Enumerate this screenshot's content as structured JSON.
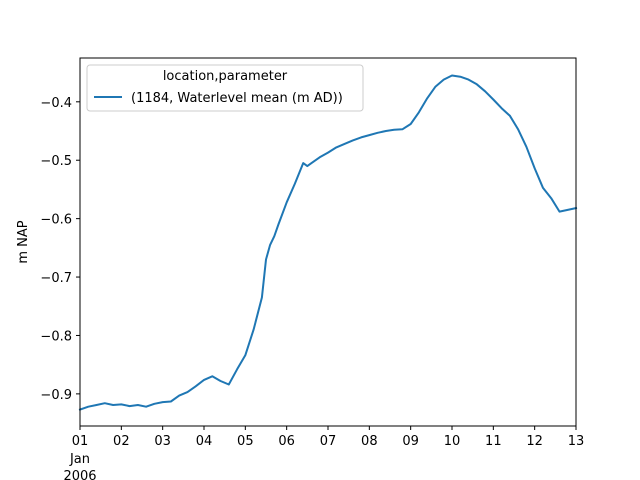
{
  "chart_data": {
    "type": "line",
    "ylabel": "m NAP",
    "xlim": [
      0,
      12
    ],
    "ylim": [
      -0.955,
      -0.325
    ],
    "grid": false,
    "legend_placement": "top-left",
    "legend_title": "location,parameter",
    "x_ticks": [
      {
        "value": 0,
        "label": "01"
      },
      {
        "value": 1,
        "label": "02"
      },
      {
        "value": 2,
        "label": "03"
      },
      {
        "value": 3,
        "label": "04"
      },
      {
        "value": 4,
        "label": "05"
      },
      {
        "value": 5,
        "label": "06"
      },
      {
        "value": 6,
        "label": "07"
      },
      {
        "value": 7,
        "label": "08"
      },
      {
        "value": 8,
        "label": "09"
      },
      {
        "value": 9,
        "label": "10"
      },
      {
        "value": 10,
        "label": "11"
      },
      {
        "value": 11,
        "label": "12"
      },
      {
        "value": 12,
        "label": "13"
      }
    ],
    "x_sublabels": [
      "Jan",
      "2006"
    ],
    "y_ticks": [
      {
        "value": -0.9,
        "label": "−0.9"
      },
      {
        "value": -0.8,
        "label": "−0.8"
      },
      {
        "value": -0.7,
        "label": "−0.7"
      },
      {
        "value": -0.6,
        "label": "−0.6"
      },
      {
        "value": -0.5,
        "label": "−0.5"
      },
      {
        "value": -0.4,
        "label": "−0.4"
      }
    ],
    "series": [
      {
        "name": "(1184, Waterlevel mean (m AD))",
        "color": "#1f77b4",
        "x": [
          0,
          0.2,
          0.4,
          0.6,
          0.8,
          1.0,
          1.2,
          1.4,
          1.6,
          1.8,
          2.0,
          2.2,
          2.4,
          2.6,
          2.8,
          3.0,
          3.2,
          3.4,
          3.6,
          3.8,
          4.0,
          4.2,
          4.4,
          4.5,
          4.6,
          4.7,
          4.8,
          5.0,
          5.2,
          5.4,
          5.5,
          5.6,
          5.8,
          6.0,
          6.2,
          6.4,
          6.6,
          6.8,
          7.0,
          7.2,
          7.4,
          7.6,
          7.8,
          8.0,
          8.2,
          8.4,
          8.6,
          8.8,
          9.0,
          9.2,
          9.4,
          9.6,
          9.8,
          10.0,
          10.2,
          10.4,
          10.6,
          10.8,
          11.0,
          11.2,
          11.4,
          11.6,
          11.8,
          12.0
        ],
        "y": [
          -0.927,
          -0.922,
          -0.919,
          -0.916,
          -0.919,
          -0.918,
          -0.921,
          -0.919,
          -0.922,
          -0.917,
          -0.914,
          -0.913,
          -0.903,
          -0.897,
          -0.887,
          -0.876,
          -0.87,
          -0.878,
          -0.884,
          -0.858,
          -0.834,
          -0.79,
          -0.735,
          -0.67,
          -0.645,
          -0.63,
          -0.61,
          -0.572,
          -0.54,
          -0.505,
          -0.51,
          -0.505,
          -0.495,
          -0.487,
          -0.478,
          -0.472,
          -0.466,
          -0.461,
          -0.457,
          -0.453,
          -0.45,
          -0.448,
          -0.447,
          -0.438,
          -0.418,
          -0.394,
          -0.374,
          -0.362,
          -0.355,
          -0.357,
          -0.362,
          -0.37,
          -0.382,
          -0.396,
          -0.411,
          -0.424,
          -0.447,
          -0.477,
          -0.514,
          -0.547,
          -0.565,
          -0.588,
          -0.585,
          -0.582
        ]
      }
    ]
  }
}
